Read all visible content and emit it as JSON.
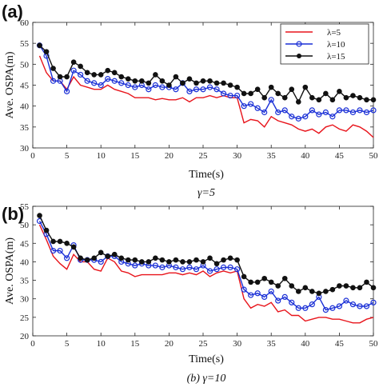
{
  "chart_data": [
    {
      "type": "line",
      "panel_label": "(a)",
      "xlabel": "Time(s)",
      "ylabel": "Ave. OSPA(m)",
      "caption": "γ=5",
      "xlim": [
        0,
        50
      ],
      "ylim": [
        30,
        60
      ],
      "xticks": [
        0,
        5,
        10,
        15,
        20,
        25,
        30,
        35,
        40,
        45,
        50
      ],
      "yticks": [
        30,
        35,
        40,
        45,
        50,
        55,
        60
      ],
      "grid": false,
      "legend_position": "top-right",
      "series": [
        {
          "name": "λ=5",
          "color": "#e8141b",
          "marker": "none",
          "x": [
            1,
            2,
            3,
            4,
            5,
            6,
            7,
            8,
            9,
            10,
            11,
            12,
            13,
            14,
            15,
            16,
            17,
            18,
            19,
            20,
            21,
            22,
            23,
            24,
            25,
            26,
            27,
            28,
            29,
            30,
            31,
            32,
            33,
            34,
            35,
            36,
            37,
            38,
            39,
            40,
            41,
            42,
            43,
            44,
            45,
            46,
            47,
            48,
            49,
            50
          ],
          "y": [
            52,
            48,
            46,
            46,
            44,
            47,
            45,
            44.5,
            44,
            44,
            45,
            44,
            43.5,
            43,
            42,
            42,
            42,
            41.5,
            41.8,
            41.5,
            41.5,
            42,
            41,
            42,
            42,
            42.5,
            42,
            42.5,
            42,
            42,
            36,
            36.8,
            36.5,
            35,
            37.5,
            36.5,
            36,
            35.5,
            34.5,
            34,
            34.5,
            33.5,
            35,
            35.5,
            34.5,
            34,
            35.5,
            35,
            34,
            32.5
          ]
        },
        {
          "name": "λ=10",
          "color": "#1a2fd6",
          "marker": "circle",
          "x": [
            1,
            2,
            3,
            4,
            5,
            6,
            7,
            8,
            9,
            10,
            11,
            12,
            13,
            14,
            15,
            16,
            17,
            18,
            19,
            20,
            21,
            22,
            23,
            24,
            25,
            26,
            27,
            28,
            29,
            30,
            31,
            32,
            33,
            34,
            35,
            36,
            37,
            38,
            39,
            40,
            41,
            42,
            43,
            44,
            45,
            46,
            47,
            48,
            49,
            50
          ],
          "y": [
            54.5,
            52,
            46,
            46,
            43.5,
            48.5,
            47.5,
            46,
            45.5,
            45,
            46.5,
            46,
            45.5,
            45,
            44.5,
            45,
            44,
            45,
            44.5,
            44.5,
            44,
            45.5,
            43.5,
            44,
            44,
            44.5,
            44,
            43,
            42.5,
            42.5,
            40,
            40.5,
            39.5,
            38.5,
            41.5,
            38.5,
            39,
            37.5,
            37,
            37.5,
            39,
            38,
            38.5,
            37.5,
            39,
            39,
            38.5,
            39,
            38.5,
            39
          ]
        },
        {
          "name": "λ=15",
          "color": "#111111",
          "marker": "dot",
          "x": [
            1,
            2,
            3,
            4,
            5,
            6,
            7,
            8,
            9,
            10,
            11,
            12,
            13,
            14,
            15,
            16,
            17,
            18,
            19,
            20,
            21,
            22,
            23,
            24,
            25,
            26,
            27,
            28,
            29,
            30,
            31,
            32,
            33,
            34,
            35,
            36,
            37,
            38,
            39,
            40,
            41,
            42,
            43,
            44,
            45,
            46,
            47,
            48,
            49,
            50
          ],
          "y": [
            54.5,
            53,
            49,
            47,
            47,
            50.5,
            49.5,
            48,
            47.5,
            47.5,
            48.5,
            48,
            47,
            46.5,
            46,
            46,
            45.5,
            47.5,
            46,
            45,
            47,
            45.5,
            46.5,
            45.5,
            46,
            46,
            45.5,
            45.5,
            45,
            44.5,
            43,
            43,
            44,
            42,
            44.5,
            43,
            42,
            44,
            41,
            44.5,
            42,
            41.5,
            43,
            41.5,
            43.5,
            42,
            42.5,
            42,
            41.5,
            41.5
          ]
        }
      ]
    },
    {
      "type": "line",
      "panel_label": "(b)",
      "xlabel": "Time(s)",
      "ylabel": "Ave. OSPA(m)",
      "caption": "(b) γ=10",
      "xlim": [
        0,
        50
      ],
      "ylim": [
        20,
        55
      ],
      "xticks": [
        0,
        5,
        10,
        15,
        20,
        25,
        30,
        35,
        40,
        45,
        50
      ],
      "yticks": [
        20,
        25,
        30,
        35,
        40,
        45,
        50,
        55
      ],
      "grid": false,
      "series": [
        {
          "name": "λ=5",
          "color": "#e8141b",
          "marker": "none",
          "x": [
            1,
            2,
            3,
            4,
            5,
            6,
            7,
            8,
            9,
            10,
            11,
            12,
            13,
            14,
            15,
            16,
            17,
            18,
            19,
            20,
            21,
            22,
            23,
            24,
            25,
            26,
            27,
            28,
            29,
            30,
            31,
            32,
            33,
            34,
            35,
            36,
            37,
            38,
            39,
            40,
            41,
            42,
            43,
            44,
            45,
            46,
            47,
            48,
            49,
            50
          ],
          "y": [
            50,
            46,
            41.5,
            39.5,
            38,
            42,
            40,
            40,
            38,
            37.5,
            41,
            40,
            37.5,
            37,
            36,
            36.5,
            36.5,
            36.5,
            36.5,
            37,
            37,
            36.5,
            37,
            36.5,
            37.5,
            36,
            37,
            37.5,
            37,
            37.5,
            30,
            27.5,
            28.5,
            28,
            29,
            26.5,
            27,
            25.5,
            25.5,
            24,
            24.5,
            25,
            25,
            24.5,
            24.5,
            24,
            23.5,
            23.5,
            24.5,
            25
          ]
        },
        {
          "name": "λ=10",
          "color": "#1a2fd6",
          "marker": "circle",
          "x": [
            1,
            2,
            3,
            4,
            5,
            6,
            7,
            8,
            9,
            10,
            11,
            12,
            13,
            14,
            15,
            16,
            17,
            18,
            19,
            20,
            21,
            22,
            23,
            24,
            25,
            26,
            27,
            28,
            29,
            30,
            31,
            32,
            33,
            34,
            35,
            36,
            37,
            38,
            39,
            40,
            41,
            42,
            43,
            44,
            45,
            46,
            47,
            48,
            49,
            50
          ],
          "y": [
            51,
            47.5,
            43,
            43,
            41,
            44.5,
            40.5,
            40.5,
            40.5,
            40,
            41.5,
            41.5,
            40,
            39.5,
            39,
            39.5,
            39,
            39,
            38.5,
            39,
            38.5,
            38,
            38.5,
            38,
            39,
            37.5,
            38,
            38.5,
            38.5,
            38,
            32.5,
            31,
            31.5,
            30.5,
            32,
            29.5,
            30.5,
            29,
            27.5,
            27.5,
            28.5,
            30.5,
            27,
            27.5,
            28,
            29.5,
            28.5,
            28,
            28,
            29
          ]
        },
        {
          "name": "λ=15",
          "color": "#111111",
          "marker": "dot",
          "x": [
            1,
            2,
            3,
            4,
            5,
            6,
            7,
            8,
            9,
            10,
            11,
            12,
            13,
            14,
            15,
            16,
            17,
            18,
            19,
            20,
            21,
            22,
            23,
            24,
            25,
            26,
            27,
            28,
            29,
            30,
            31,
            32,
            33,
            34,
            35,
            36,
            37,
            38,
            39,
            40,
            41,
            42,
            43,
            44,
            45,
            46,
            47,
            48,
            49,
            50
          ],
          "y": [
            52.5,
            48.5,
            45.5,
            45.5,
            45,
            44,
            41,
            40.5,
            41,
            42.5,
            41.5,
            42,
            41,
            40.5,
            40.5,
            40,
            40,
            41,
            40.5,
            40,
            40.5,
            40,
            40,
            40.5,
            40,
            41,
            39.5,
            40.5,
            41,
            40.5,
            36,
            34.5,
            34.5,
            35.5,
            34.5,
            33.5,
            35.5,
            33.5,
            32,
            33,
            32,
            31.5,
            32,
            32.5,
            33.5,
            33.5,
            33,
            33,
            34.5,
            33
          ]
        }
      ]
    }
  ]
}
